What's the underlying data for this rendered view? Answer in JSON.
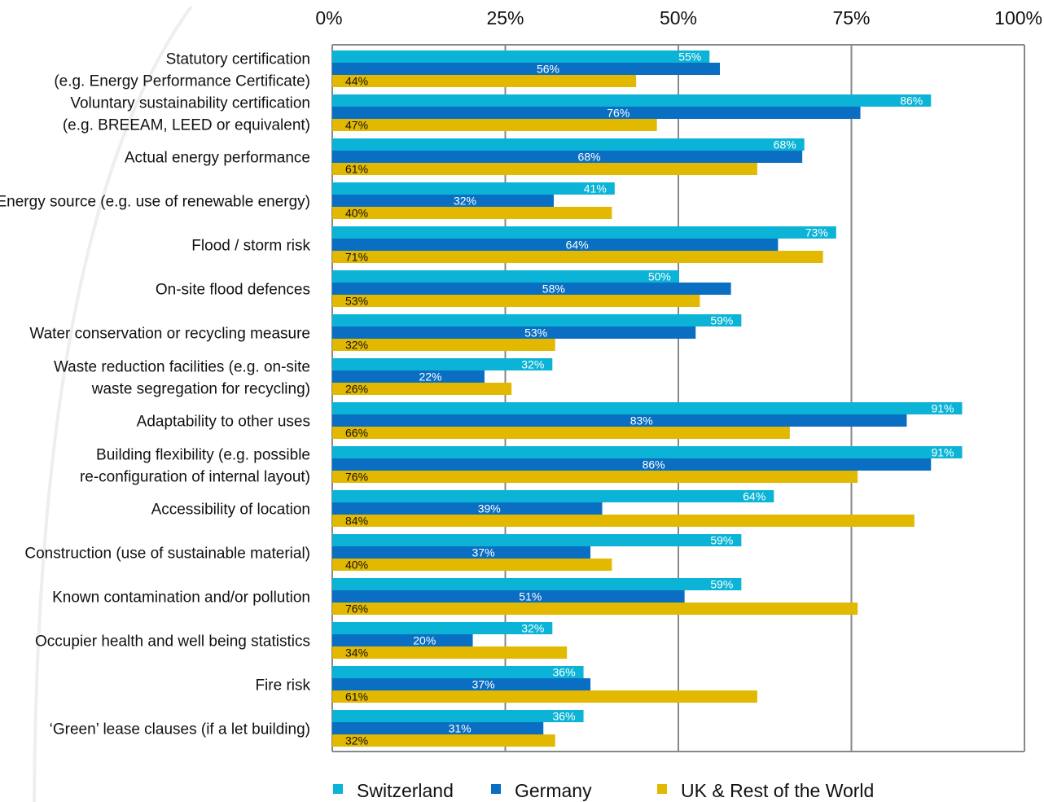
{
  "chart_data": {
    "type": "bar",
    "orientation": "horizontal",
    "title": "",
    "xlabel": "",
    "ylabel": "",
    "xlim": [
      0,
      100
    ],
    "x_ticks": [
      "0%",
      "25%",
      "50%",
      "75%",
      "100%"
    ],
    "grid": true,
    "legend_position": "bottom",
    "categories": [
      [
        "Statutory certification",
        "(e.g. Energy Performance Certificate)"
      ],
      [
        "Voluntary sustainability certification",
        "(e.g. BREEAM, LEED or equivalent)"
      ],
      [
        "Actual energy performance"
      ],
      [
        "Energy source (e.g. use of renewable energy)"
      ],
      [
        "Flood / storm risk"
      ],
      [
        "On-site flood defences"
      ],
      [
        "Water conservation or recycling measure"
      ],
      [
        "Waste reduction facilities (e.g. on-site",
        "waste segregation for recycling)"
      ],
      [
        "Adaptability to other uses"
      ],
      [
        "Building flexibility (e.g. possible",
        "re-configuration of internal layout)"
      ],
      [
        "Accessibility of location"
      ],
      [
        "Construction (use of sustainable material)"
      ],
      [
        "Known contamination and/or pollution"
      ],
      [
        "Occupier health and well being statistics"
      ],
      [
        "Fire risk"
      ],
      [
        "‘Green’ lease clauses (if a let building)"
      ]
    ],
    "series": [
      {
        "name": "Switzerland",
        "color": "#0bb4d6",
        "values": [
          55,
          86,
          68,
          41,
          73,
          50,
          59,
          32,
          91,
          91,
          64,
          59,
          59,
          32,
          36,
          36
        ],
        "labels": [
          "55%",
          "86%",
          "68%",
          "41%",
          "73%",
          "50%",
          "59%",
          "32%",
          "91%",
          "91%",
          "64%",
          "59%",
          "59%",
          "32%",
          "36%",
          "36%"
        ],
        "bar_values": [
          54.5,
          86.5,
          68.2,
          40.8,
          72.8,
          50.1,
          59.1,
          31.8,
          91.0,
          91.0,
          63.8,
          59.1,
          59.1,
          31.8,
          36.3,
          36.3
        ]
      },
      {
        "name": "Germany",
        "color": "#0a6fc2",
        "values": [
          56,
          76,
          68,
          32,
          64,
          58,
          53,
          22,
          83,
          86,
          39,
          37,
          51,
          20,
          37,
          31
        ],
        "labels": [
          "56%",
          "76%",
          "68%",
          "32%",
          "64%",
          "58%",
          "53%",
          "22%",
          "83%",
          "86%",
          "39%",
          "37%",
          "51%",
          "20%",
          "37%",
          "31%"
        ],
        "bar_values": [
          56.0,
          76.3,
          67.9,
          32.0,
          64.4,
          57.6,
          52.5,
          22.0,
          83.0,
          86.5,
          39.0,
          37.3,
          50.9,
          20.3,
          37.3,
          30.5
        ]
      },
      {
        "name": "UK & Rest of the World",
        "color": "#e2b800",
        "values": [
          44,
          47,
          61,
          40,
          71,
          53,
          32,
          26,
          66,
          76,
          84,
          40,
          76,
          34,
          61,
          32
        ],
        "labels": [
          "44%",
          "47%",
          "61%",
          "40%",
          "71%",
          "53%",
          "32%",
          "26%",
          "66%",
          "76%",
          "84%",
          "40%",
          "76%",
          "34%",
          "61%",
          "32%"
        ],
        "bar_values": [
          43.9,
          46.9,
          61.4,
          40.4,
          70.9,
          53.1,
          32.2,
          25.9,
          66.1,
          75.9,
          84.1,
          40.4,
          75.9,
          33.9,
          61.4,
          32.2
        ]
      }
    ]
  }
}
